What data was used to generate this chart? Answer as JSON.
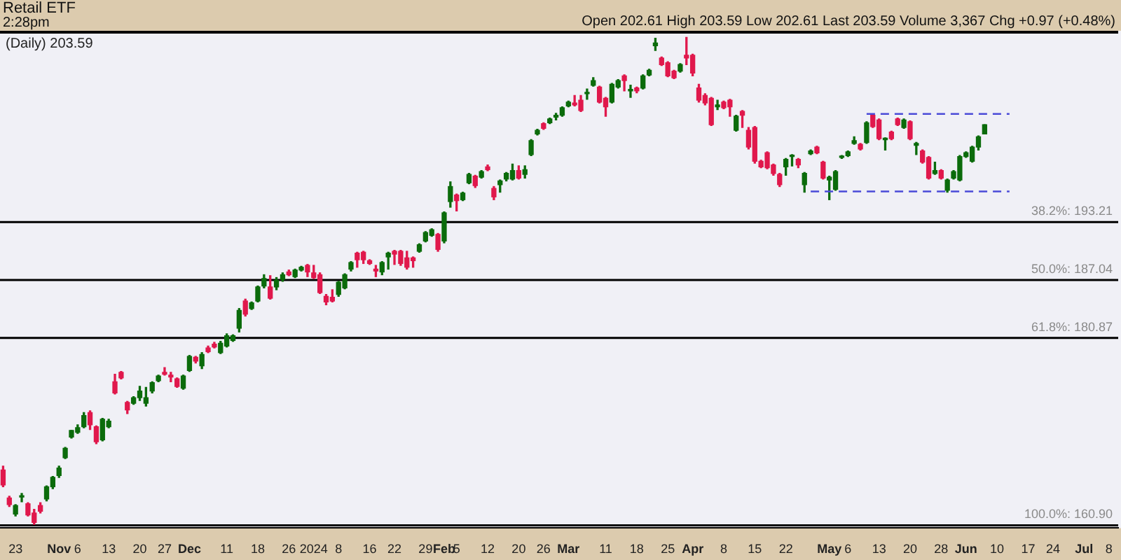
{
  "chart_data": {
    "type": "candlestick",
    "title": "Retail ETF",
    "annotations": [
      "2:28pm",
      "Open 202.61 High 203.59 Low 202.61 Last 203.59 Volume 3,367 Chg +0.97 (+0.48%)",
      "(Daily) 203.59"
    ],
    "categories": [
      null,
      null,
      "23",
      null,
      null,
      null,
      null,
      null,
      null,
      "Nov",
      null,
      null,
      "6",
      null,
      null,
      null,
      null,
      "13",
      null,
      null,
      null,
      null,
      "20",
      null,
      null,
      null,
      "27",
      null,
      null,
      null,
      "Dec",
      null,
      null,
      null,
      null,
      null,
      "11",
      null,
      null,
      null,
      null,
      "18",
      null,
      null,
      null,
      null,
      "26",
      null,
      null,
      null,
      "2024",
      null,
      null,
      null,
      "8",
      null,
      null,
      null,
      null,
      "16",
      null,
      null,
      null,
      "22",
      null,
      null,
      null,
      null,
      "29",
      null,
      null,
      "Feb",
      null,
      "5",
      null,
      null,
      null,
      null,
      "12",
      null,
      null,
      null,
      null,
      "20",
      null,
      null,
      null,
      "26",
      null,
      null,
      null,
      "Mar",
      null,
      null,
      null,
      null,
      null,
      "11",
      null,
      null,
      null,
      null,
      "18",
      null,
      null,
      null,
      null,
      "25",
      null,
      null,
      null,
      "Apr",
      null,
      null,
      null,
      null,
      "8",
      null,
      null,
      null,
      null,
      "15",
      null,
      null,
      null,
      null,
      "22",
      null,
      null,
      null,
      null,
      null,
      null,
      "May",
      null,
      null,
      "6",
      null,
      null,
      null,
      null,
      "13",
      null,
      null,
      null,
      null,
      "20",
      null,
      null,
      null,
      null,
      "28",
      null,
      null,
      null,
      "Jun",
      null,
      null,
      null,
      null,
      "10",
      null,
      null,
      null,
      null,
      "17",
      null,
      null,
      null,
      "24",
      null,
      null,
      null,
      null,
      "Jul",
      null,
      null,
      null,
      "8",
      null
    ],
    "ohlc": [
      [
        166.8,
        167.2,
        165.0,
        165.2
      ],
      [
        163.8,
        164.0,
        162.9,
        163.1
      ],
      [
        162.1,
        163.1,
        161.9,
        163.0
      ],
      [
        163.9,
        164.3,
        163.4,
        164.0
      ],
      [
        163.2,
        163.3,
        161.9,
        162.0
      ],
      [
        162.2,
        162.6,
        161.0,
        161.2
      ],
      [
        163.0,
        163.3,
        162.2,
        162.4
      ],
      [
        163.7,
        165.1,
        163.5,
        165.0
      ],
      [
        165.0,
        166.1,
        164.8,
        166.0
      ],
      [
        166.2,
        167.2,
        166.0,
        167.0
      ],
      [
        168.1,
        169.2,
        168.0,
        169.1
      ],
      [
        170.3,
        171.0,
        170.2,
        171.0
      ],
      [
        170.8,
        171.6,
        170.7,
        171.3
      ],
      [
        171.4,
        172.9,
        171.3,
        172.6
      ],
      [
        172.9,
        173.1,
        171.1,
        171.6
      ],
      [
        171.4,
        171.5,
        169.6,
        169.8
      ],
      [
        170.0,
        172.3,
        169.9,
        172.2
      ],
      [
        171.4,
        172.2,
        171.3,
        172.0
      ],
      [
        176.2,
        177.0,
        174.9,
        175.0
      ],
      [
        177.2,
        177.3,
        176.5,
        176.6
      ],
      [
        174.0,
        174.1,
        172.8,
        173.2
      ],
      [
        173.9,
        174.6,
        173.8,
        174.5
      ],
      [
        174.5,
        175.7,
        174.2,
        175.2
      ],
      [
        173.9,
        175.6,
        173.6,
        174.5
      ],
      [
        175.2,
        176.2,
        175.0,
        176.1
      ],
      [
        176.3,
        176.9,
        176.2,
        176.8
      ],
      [
        177.2,
        177.7,
        176.9,
        177.0
      ],
      [
        176.9,
        177.2,
        176.2,
        176.7
      ],
      [
        176.5,
        176.6,
        175.6,
        175.7
      ],
      [
        175.5,
        176.9,
        175.4,
        176.8
      ],
      [
        177.4,
        179.0,
        177.3,
        178.9
      ],
      [
        178.8,
        178.9,
        178.2,
        178.4
      ],
      [
        177.9,
        179.3,
        177.6,
        179.1
      ],
      [
        179.8,
        180.0,
        179.3,
        179.4
      ],
      [
        180.2,
        180.4,
        179.8,
        179.9
      ],
      [
        179.3,
        180.5,
        179.2,
        180.3
      ],
      [
        180.0,
        181.3,
        179.9,
        181.1
      ],
      [
        180.6,
        181.2,
        180.5,
        181.1
      ],
      [
        181.9,
        184.0,
        181.5,
        183.8
      ],
      [
        184.8,
        185.0,
        183.2,
        183.4
      ],
      [
        184.0,
        184.7,
        183.9,
        184.6
      ],
      [
        184.8,
        186.4,
        184.7,
        186.3
      ],
      [
        186.4,
        187.6,
        186.2,
        187.2
      ],
      [
        186.3,
        187.5,
        185.0,
        185.1
      ],
      [
        186.3,
        187.3,
        186.0,
        187.0
      ],
      [
        187.1,
        187.8,
        186.9,
        187.6
      ],
      [
        187.9,
        188.1,
        187.5,
        187.6
      ],
      [
        187.4,
        188.2,
        187.3,
        188.1
      ],
      [
        188.1,
        188.5,
        188.0,
        188.4
      ],
      [
        188.6,
        188.7,
        187.4,
        187.9
      ],
      [
        187.8,
        188.6,
        187.2,
        187.3
      ],
      [
        187.6,
        187.8,
        185.6,
        185.7
      ],
      [
        185.3,
        185.5,
        184.4,
        184.7
      ],
      [
        185.2,
        186.0,
        184.7,
        184.8
      ],
      [
        185.5,
        186.9,
        185.3,
        186.8
      ],
      [
        186.2,
        187.7,
        186.1,
        187.6
      ],
      [
        188.2,
        189.0,
        188.0,
        188.9
      ],
      [
        189.9,
        190.0,
        188.4,
        189.2
      ],
      [
        190.0,
        190.1,
        188.8,
        189.2
      ],
      [
        189.1,
        189.2,
        188.7,
        188.8
      ],
      [
        188.2,
        188.6,
        187.4,
        188.0
      ],
      [
        187.9,
        189.0,
        187.6,
        188.9
      ],
      [
        189.5,
        190.0,
        188.2,
        189.9
      ],
      [
        190.1,
        190.2,
        188.7,
        189.8
      ],
      [
        190.1,
        190.2,
        188.6,
        188.8
      ],
      [
        189.4,
        190.1,
        188.2,
        188.4
      ],
      [
        189.4,
        189.5,
        188.4,
        189.1
      ],
      [
        190.1,
        190.9,
        190.0,
        190.8
      ],
      [
        191.2,
        192.2,
        191.1,
        192.1
      ],
      [
        191.8,
        192.5,
        191.7,
        192.4
      ],
      [
        191.9,
        192.0,
        190.1,
        190.3
      ],
      [
        191.2,
        194.3,
        191.0,
        194.2
      ],
      [
        195.4,
        197.5,
        194.8,
        197.0
      ],
      [
        196.1,
        196.2,
        194.4,
        195.5
      ],
      [
        195.6,
        196.4,
        195.5,
        196.3
      ],
      [
        197.4,
        198.4,
        197.3,
        198.3
      ],
      [
        198.1,
        198.2,
        196.9,
        197.1
      ],
      [
        198.0,
        198.7,
        197.9,
        198.6
      ],
      [
        199.1,
        199.3,
        198.7,
        198.8
      ],
      [
        196.8,
        197.0,
        195.6,
        195.9
      ],
      [
        197.2,
        197.7,
        196.4,
        197.6
      ],
      [
        197.8,
        198.5,
        197.6,
        198.4
      ],
      [
        197.8,
        199.4,
        197.7,
        198.7
      ],
      [
        198.7,
        199.2,
        197.8,
        197.9
      ],
      [
        198.3,
        199.2,
        197.9,
        198.8
      ],
      [
        200.4,
        202.0,
        200.3,
        201.9
      ],
      [
        202.6,
        203.1,
        202.5,
        203.0
      ],
      [
        203.7,
        203.8,
        203.1,
        203.2
      ],
      [
        203.8,
        204.3,
        203.7,
        204.2
      ],
      [
        204.4,
        204.8,
        204.1,
        204.6
      ],
      [
        204.6,
        205.5,
        204.5,
        205.4
      ],
      [
        205.6,
        206.1,
        205.5,
        206.0
      ],
      [
        205.9,
        206.7,
        205.6,
        205.7
      ],
      [
        206.2,
        206.7,
        205.0,
        205.1
      ],
      [
        206.9,
        207.4,
        206.3,
        207.0
      ],
      [
        207.8,
        208.6,
        207.7,
        208.3
      ],
      [
        207.6,
        207.7,
        205.9,
        206.0
      ],
      [
        206.4,
        206.5,
        204.5,
        205.5
      ],
      [
        206.0,
        208.0,
        205.9,
        207.9
      ],
      [
        207.6,
        208.4,
        207.5,
        208.3
      ],
      [
        208.8,
        208.9,
        207.2,
        208.3
      ],
      [
        207.2,
        207.8,
        206.5,
        207.3
      ],
      [
        207.5,
        207.6,
        207.0,
        207.2
      ],
      [
        207.5,
        208.9,
        207.4,
        208.8
      ],
      [
        208.9,
        209.5,
        208.8,
        209.4
      ],
      [
        212.0,
        212.8,
        211.5,
        212.3
      ],
      [
        210.7,
        210.8,
        209.9,
        210.0
      ],
      [
        210.2,
        210.3,
        208.7,
        208.8
      ],
      [
        209.3,
        209.4,
        208.5,
        208.6
      ],
      [
        209.3,
        210.1,
        209.2,
        210.0
      ],
      [
        211.0,
        212.9,
        210.0,
        210.7
      ],
      [
        211.0,
        211.1,
        208.8,
        209.1
      ],
      [
        207.5,
        207.9,
        206.0,
        206.2
      ],
      [
        206.7,
        206.9,
        205.7,
        205.9
      ],
      [
        206.4,
        206.5,
        203.5,
        203.6
      ],
      [
        205.5,
        206.2,
        205.2,
        205.7
      ],
      [
        206.0,
        206.1,
        205.3,
        205.4
      ],
      [
        206.2,
        206.3,
        204.5,
        205.5
      ],
      [
        203.0,
        204.6,
        202.9,
        204.5
      ],
      [
        205.0,
        205.1,
        203.3,
        204.6
      ],
      [
        203.0,
        203.3,
        201.0,
        201.2
      ],
      [
        203.3,
        203.4,
        199.5,
        199.7
      ],
      [
        199.7,
        199.8,
        199.0,
        199.1
      ],
      [
        200.6,
        200.7,
        198.9,
        199.0
      ],
      [
        199.3,
        199.4,
        198.2,
        198.4
      ],
      [
        198.3,
        198.4,
        197.0,
        197.2
      ],
      [
        199.1,
        200.0,
        198.2,
        199.9
      ],
      [
        200.2,
        200.4,
        199.2,
        200.3
      ],
      [
        199.9,
        200.0,
        199.0,
        199.3
      ],
      [
        197.2,
        198.5,
        196.4,
        198.4
      ],
      [
        200.5,
        200.9,
        200.4,
        200.8
      ],
      [
        201.2,
        201.3,
        200.5,
        200.6
      ],
      [
        199.6,
        199.7,
        197.8,
        197.9
      ],
      [
        197.7,
        198.1,
        195.6,
        198.0
      ],
      [
        196.7,
        198.7,
        196.6,
        198.6
      ],
      [
        200.1,
        200.3,
        200.0,
        200.2
      ],
      [
        200.3,
        200.8,
        200.2,
        200.7
      ],
      [
        201.6,
        202.3,
        201.5,
        201.9
      ],
      [
        201.5,
        201.6,
        200.9,
        201.0
      ],
      [
        201.7,
        203.9,
        201.6,
        203.8
      ],
      [
        204.6,
        204.7,
        203.3,
        203.4
      ],
      [
        204.1,
        204.2,
        202.0,
        202.1
      ],
      [
        202.0,
        202.2,
        200.9,
        202.1
      ],
      [
        202.8,
        202.9,
        202.0,
        202.1
      ],
      [
        204.2,
        204.3,
        203.5,
        203.6
      ],
      [
        203.3,
        204.2,
        203.2,
        204.1
      ],
      [
        203.9,
        204.0,
        202.0,
        202.1
      ],
      [
        201.4,
        201.7,
        200.4,
        201.6
      ],
      [
        200.8,
        200.9,
        199.5,
        199.6
      ],
      [
        200.1,
        200.2,
        197.8,
        197.9
      ],
      [
        198.4,
        199.6,
        198.3,
        198.7
      ],
      [
        198.7,
        198.8,
        197.8,
        197.9
      ],
      [
        196.6,
        197.8,
        196.4,
        197.7
      ],
      [
        197.9,
        198.7,
        197.8,
        198.6
      ],
      [
        197.7,
        200.3,
        197.6,
        200.2
      ],
      [
        200.2,
        200.7,
        200.1,
        200.6
      ],
      [
        199.7,
        201.3,
        199.6,
        201.2
      ],
      [
        201.2,
        202.4,
        200.9,
        202.3
      ],
      [
        202.61,
        203.59,
        202.61,
        203.59
      ],
      null,
      null,
      null,
      null,
      null,
      null,
      null,
      null,
      null,
      null,
      null,
      null,
      null,
      null,
      null,
      null,
      null,
      null,
      null,
      null,
      null
    ],
    "colors": [
      "#e0184c",
      "#e0184c",
      "#0b6b0b",
      "#0b6b0b",
      "#e0184c",
      "#e0184c",
      "#e0184c",
      "#0b6b0b",
      "#0b6b0b",
      "#0b6b0b",
      "#0b6b0b",
      "#0b6b0b",
      "#0b6b0b",
      "#0b6b0b",
      "#e0184c",
      "#e0184c",
      "#0b6b0b",
      "#0b6b0b",
      "#e0184c",
      "#e0184c",
      "#e0184c",
      "#0b6b0b",
      "#0b6b0b",
      "#0b6b0b",
      "#0b6b0b",
      "#0b6b0b",
      "#e0184c",
      "#e0184c",
      "#e0184c",
      "#0b6b0b",
      "#0b6b0b",
      "#e0184c",
      "#0b6b0b",
      "#e0184c",
      "#e0184c",
      "#0b6b0b",
      "#0b6b0b",
      "#0b6b0b",
      "#0b6b0b",
      "#e0184c",
      "#0b6b0b",
      "#0b6b0b",
      "#0b6b0b",
      "#e0184c",
      "#0b6b0b",
      "#0b6b0b",
      "#e0184c",
      "#0b6b0b",
      "#0b6b0b",
      "#e0184c",
      "#e0184c",
      "#e0184c",
      "#e0184c",
      "#e0184c",
      "#0b6b0b",
      "#0b6b0b",
      "#0b6b0b",
      "#e0184c",
      "#e0184c",
      "#e0184c",
      "#e0184c",
      "#0b6b0b",
      "#0b6b0b",
      "#e0184c",
      "#e0184c",
      "#e0184c",
      "#e0184c",
      "#0b6b0b",
      "#0b6b0b",
      "#0b6b0b",
      "#e0184c",
      "#0b6b0b",
      "#0b6b0b",
      "#e0184c",
      "#0b6b0b",
      "#0b6b0b",
      "#e0184c",
      "#0b6b0b",
      "#e0184c",
      "#e0184c",
      "#0b6b0b",
      "#0b6b0b",
      "#0b6b0b",
      "#e0184c",
      "#0b6b0b",
      "#0b6b0b",
      "#0b6b0b",
      "#e0184c",
      "#0b6b0b",
      "#0b6b0b",
      "#0b6b0b",
      "#0b6b0b",
      "#e0184c",
      "#e0184c",
      "#0b6b0b",
      "#0b6b0b",
      "#e0184c",
      "#e0184c",
      "#0b6b0b",
      "#0b6b0b",
      "#e0184c",
      "#0b6b0b",
      "#e0184c",
      "#0b6b0b",
      "#0b6b0b",
      "#0b6b0b",
      "#e0184c",
      "#e0184c",
      "#e0184c",
      "#0b6b0b",
      "#e0184c",
      "#e0184c",
      "#e0184c",
      "#e0184c",
      "#e0184c",
      "#0b6b0b",
      "#e0184c",
      "#e0184c",
      "#0b6b0b",
      "#e0184c",
      "#e0184c",
      "#e0184c",
      "#e0184c",
      "#e0184c",
      "#e0184c",
      "#e0184c",
      "#0b6b0b",
      "#0b6b0b",
      "#e0184c",
      "#0b6b0b",
      "#0b6b0b",
      "#e0184c",
      "#e0184c",
      "#0b6b0b",
      "#0b6b0b",
      "#0b6b0b",
      "#0b6b0b",
      "#0b6b0b",
      "#e0184c",
      "#0b6b0b",
      "#e0184c",
      "#e0184c",
      "#0b6b0b",
      "#e0184c",
      "#e0184c",
      "#0b6b0b",
      "#e0184c",
      "#0b6b0b",
      "#e0184c",
      "#e0184c",
      "#0b6b0b",
      "#e0184c",
      "#0b6b0b",
      "#0b6b0b",
      "#0b6b0b",
      "#0b6b0b",
      "#0b6b0b",
      "#0b6b0b",
      "#0b6b0b",
      null,
      null,
      null,
      null,
      null,
      null,
      null,
      null,
      null,
      null,
      null,
      null,
      null,
      null,
      null,
      null,
      null,
      null,
      null,
      null,
      null
    ],
    "series": [
      {
        "type": "line",
        "color": "#4a4ad8",
        "line_style": "dashed",
        "values": [
          null,
          null,
          null,
          null,
          null,
          null,
          null,
          null,
          null,
          null,
          null,
          null,
          null,
          null,
          null,
          null,
          null,
          null,
          null,
          null,
          null,
          null,
          null,
          null,
          null,
          null,
          null,
          null,
          null,
          null,
          null,
          null,
          null,
          null,
          null,
          null,
          null,
          null,
          null,
          null,
          null,
          null,
          null,
          null,
          null,
          null,
          null,
          null,
          null,
          null,
          null,
          null,
          null,
          null,
          null,
          null,
          null,
          null,
          null,
          null,
          null,
          null,
          null,
          null,
          null,
          null,
          null,
          null,
          null,
          null,
          null,
          null,
          null,
          null,
          null,
          null,
          null,
          null,
          null,
          null,
          null,
          null,
          null,
          null,
          null,
          null,
          null,
          null,
          null,
          null,
          null,
          null,
          null,
          null,
          null,
          null,
          null,
          null,
          null,
          null,
          null,
          null,
          null,
          null,
          null,
          null,
          null,
          null,
          null,
          null,
          null,
          null,
          null,
          null,
          null,
          null,
          null,
          null,
          null,
          null,
          null,
          null,
          null,
          null,
          null,
          null,
          null,
          null,
          null,
          null,
          null,
          null,
          null,
          null,
          null,
          null,
          null,
          null,
          null,
          204.74,
          204.74,
          204.74,
          204.74,
          204.74,
          204.74,
          204.74,
          204.74,
          204.74,
          204.74,
          204.74,
          204.74,
          204.74,
          204.74,
          204.74,
          204.74,
          204.74,
          204.74,
          204.74,
          204.74,
          204.74,
          204.74,
          204.74,
          204.74,
          null,
          null,
          null,
          null,
          null,
          null,
          null,
          null,
          null,
          null,
          null,
          null,
          null,
          null,
          null,
          null,
          null
        ]
      },
      {
        "type": "line",
        "color": "#4a4ad8",
        "line_style": "dashed",
        "values": [
          null,
          null,
          null,
          null,
          null,
          null,
          null,
          null,
          null,
          null,
          null,
          null,
          null,
          null,
          null,
          null,
          null,
          null,
          null,
          null,
          null,
          null,
          null,
          null,
          null,
          null,
          null,
          null,
          null,
          null,
          null,
          null,
          null,
          null,
          null,
          null,
          null,
          null,
          null,
          null,
          null,
          null,
          null,
          null,
          null,
          null,
          null,
          null,
          null,
          null,
          null,
          null,
          null,
          null,
          null,
          null,
          null,
          null,
          null,
          null,
          null,
          null,
          null,
          null,
          null,
          null,
          null,
          null,
          null,
          null,
          null,
          null,
          null,
          null,
          null,
          null,
          null,
          null,
          null,
          null,
          null,
          null,
          null,
          null,
          null,
          null,
          null,
          null,
          null,
          null,
          null,
          null,
          null,
          null,
          null,
          null,
          null,
          null,
          null,
          null,
          null,
          null,
          null,
          null,
          null,
          null,
          null,
          null,
          null,
          null,
          null,
          null,
          null,
          null,
          null,
          null,
          null,
          null,
          null,
          null,
          null,
          null,
          null,
          null,
          null,
          null,
          null,
          null,
          null,
          null,
          196.48,
          196.48,
          196.48,
          196.48,
          196.48,
          196.48,
          196.48,
          196.48,
          196.48,
          196.48,
          196.48,
          196.48,
          196.48,
          196.48,
          196.48,
          196.48,
          196.48,
          196.48,
          196.48,
          196.48,
          196.48,
          196.48,
          196.48,
          196.48,
          196.48,
          196.48,
          196.48,
          196.48,
          196.48,
          196.48,
          196.48,
          196.48,
          196.48,
          null,
          null,
          null,
          null,
          null,
          null,
          null,
          null,
          null,
          null,
          null,
          null,
          null,
          null,
          null,
          null,
          null
        ]
      }
    ],
    "ref_lines": [
      {
        "axis": "y",
        "value": 193.21,
        "label": "38.2%: 193.21",
        "color": "#000000"
      },
      {
        "axis": "y",
        "value": 187.04,
        "label": "50.0%: 187.04",
        "color": "#000000"
      },
      {
        "axis": "y",
        "value": 180.87,
        "label": "61.8%: 180.87",
        "color": "#000000"
      },
      {
        "axis": "y",
        "value": 160.9,
        "label": "100.0%: 160.90",
        "color": "#000000"
      }
    ],
    "ylim": [
      160.6,
      213.6
    ],
    "tick_labels": "x"
  }
}
